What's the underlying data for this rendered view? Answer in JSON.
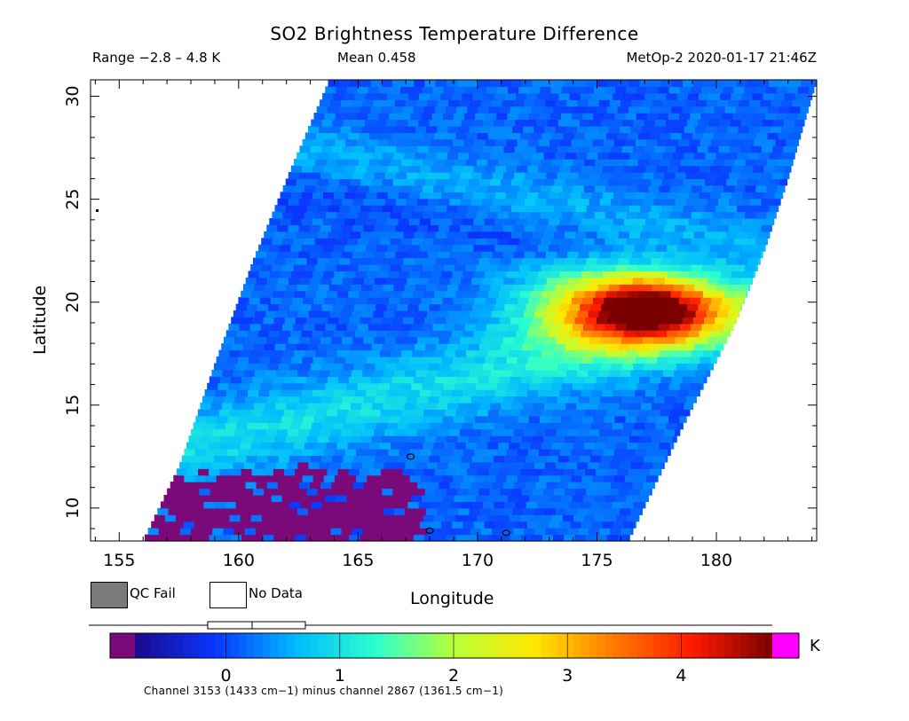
{
  "chart_data": {
    "type": "heatmap",
    "title": "SO2 Brightness Temperature Difference",
    "range_text": "Range −2.8 – 4.8 K",
    "mean_text": "Mean 0.458",
    "satellite_text": "MetOp-2 2020-01-17 21:46Z",
    "xlabel": "Longitude",
    "ylabel": "Latitude",
    "xlim": [
      153.8,
      184.2
    ],
    "ylim": [
      8.4,
      30.8
    ],
    "xticks": [
      155,
      160,
      165,
      170,
      175,
      180
    ],
    "yticks": [
      10,
      15,
      20,
      25,
      30
    ],
    "swath": {
      "west_edge": [
        [
          156.0,
          8.4
        ],
        [
          157.5,
          12.0
        ],
        [
          159.0,
          17.0
        ],
        [
          160.6,
          22.0
        ],
        [
          162.2,
          26.5
        ],
        [
          163.8,
          30.8
        ]
      ],
      "east_edge": [
        [
          176.3,
          8.4
        ],
        [
          178.6,
          14.0
        ],
        [
          180.8,
          19.0
        ],
        [
          182.0,
          22.5
        ],
        [
          183.0,
          26.0
        ],
        [
          184.2,
          30.8
        ]
      ]
    },
    "features": [
      {
        "name": "SO2 plume",
        "lon": 177.0,
        "lat": 19.5,
        "peak_value": 4.5
      },
      {
        "name": "QC fail region",
        "lon_range": [
          156.0,
          167.0
        ],
        "lat_range": [
          8.4,
          11.5
        ]
      }
    ],
    "colorbar": {
      "range": [
        -0.8,
        4.8
      ],
      "ticks": [
        0,
        1,
        2,
        3,
        4
      ],
      "unit": "K",
      "colors": [
        "#7a0a7a",
        "#1a0a8a",
        "#0a34ff",
        "#00b8ff",
        "#2affd0",
        "#b8ff3a",
        "#ffe800",
        "#ff7a00",
        "#ff1a00",
        "#7a0000",
        "#ff00ff"
      ]
    },
    "legend": {
      "qc_fail": "QC Fail",
      "no_data": "No Data"
    },
    "footnote": "Channel 3153 (1433 cm−1) minus channel 2867 (1361.5 cm−1)"
  }
}
